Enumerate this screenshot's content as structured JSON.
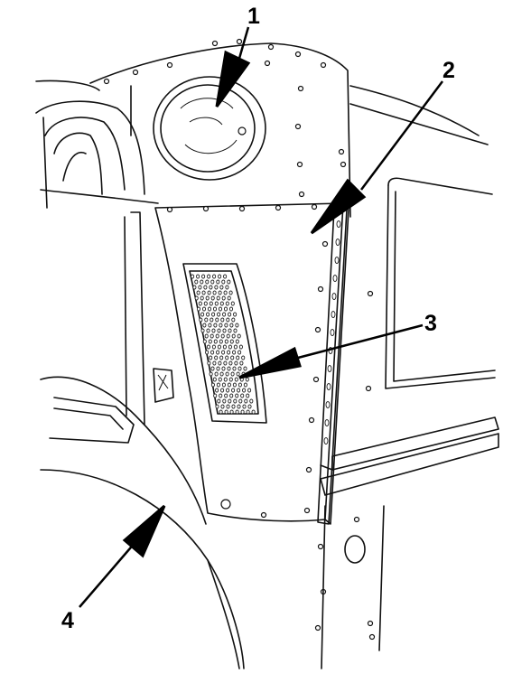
{
  "figure": {
    "description_visible": false,
    "callouts": [
      {
        "id": "1",
        "label": "1"
      },
      {
        "id": "2",
        "label": "2"
      },
      {
        "id": "3",
        "label": "3"
      },
      {
        "id": "4",
        "label": "4"
      }
    ]
  }
}
